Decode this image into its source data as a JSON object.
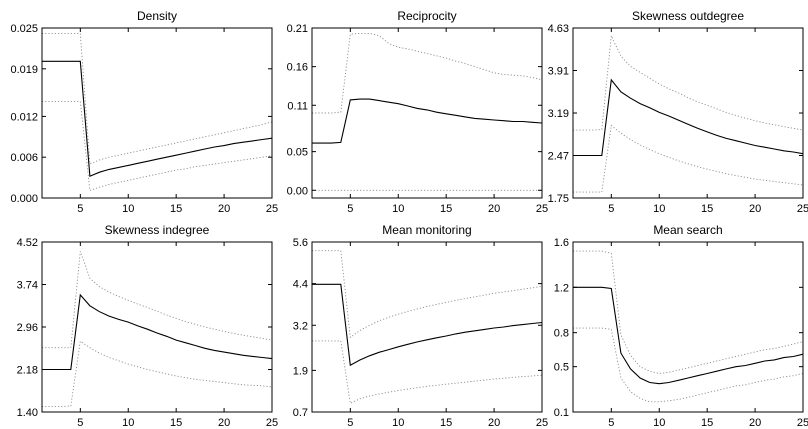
{
  "chart_data": [
    {
      "type": "line",
      "title": "Density",
      "xlim": [
        1,
        25
      ],
      "xticks": [
        5,
        10,
        15,
        20,
        25
      ],
      "ylim": [
        0,
        0.025
      ],
      "yticks": [
        0.0,
        0.006,
        0.012,
        0.019,
        0.025
      ],
      "ytick_labels": [
        "0.000",
        "0.006",
        "0.012",
        "0.019",
        "0.025"
      ],
      "x": [
        1,
        2,
        3,
        4,
        5,
        6,
        7,
        8,
        9,
        10,
        11,
        12,
        13,
        14,
        15,
        16,
        17,
        18,
        19,
        20,
        21,
        22,
        23,
        24,
        25
      ],
      "series": [
        {
          "style": "solid",
          "values": [
            0.0201,
            0.0201,
            0.0201,
            0.0201,
            0.0201,
            0.0032,
            0.0038,
            0.0042,
            0.0045,
            0.0048,
            0.0051,
            0.0054,
            0.0057,
            0.006,
            0.0063,
            0.0066,
            0.0069,
            0.0072,
            0.0075,
            0.0077,
            0.008,
            0.0082,
            0.0084,
            0.0086,
            0.0088
          ]
        },
        {
          "style": "dotted",
          "values": [
            0.0242,
            0.0242,
            0.0242,
            0.0242,
            0.0242,
            0.005,
            0.0056,
            0.006,
            0.0063,
            0.0066,
            0.0069,
            0.0072,
            0.0075,
            0.0078,
            0.0081,
            0.0084,
            0.0087,
            0.009,
            0.0093,
            0.0096,
            0.0099,
            0.0102,
            0.0105,
            0.0108,
            0.0112
          ]
        },
        {
          "style": "dotted",
          "values": [
            0.0142,
            0.0142,
            0.0142,
            0.0142,
            0.0142,
            0.0011,
            0.0016,
            0.002,
            0.0023,
            0.0026,
            0.0029,
            0.0032,
            0.0035,
            0.0038,
            0.0041,
            0.0043,
            0.0046,
            0.0048,
            0.005,
            0.0052,
            0.0054,
            0.0056,
            0.0058,
            0.006,
            0.0062
          ]
        }
      ]
    },
    {
      "type": "line",
      "title": "Reciprocity",
      "xlim": [
        1,
        25
      ],
      "xticks": [
        5,
        10,
        15,
        20,
        25
      ],
      "ylim": [
        -0.01,
        0.21
      ],
      "yticks": [
        0.0,
        0.05,
        0.11,
        0.16,
        0.21
      ],
      "ytick_labels": [
        "0.00",
        "0.05",
        "0.11",
        "0.16",
        "0.21"
      ],
      "x": [
        1,
        2,
        3,
        4,
        5,
        6,
        7,
        8,
        9,
        10,
        11,
        12,
        13,
        14,
        15,
        16,
        17,
        18,
        19,
        20,
        21,
        22,
        23,
        24,
        25
      ],
      "series": [
        {
          "style": "solid",
          "values": [
            0.061,
            0.061,
            0.061,
            0.062,
            0.117,
            0.118,
            0.118,
            0.116,
            0.114,
            0.112,
            0.109,
            0.106,
            0.104,
            0.101,
            0.099,
            0.097,
            0.095,
            0.093,
            0.092,
            0.091,
            0.09,
            0.089,
            0.089,
            0.088,
            0.087
          ]
        },
        {
          "style": "dotted",
          "values": [
            0.1,
            0.1,
            0.1,
            0.101,
            0.202,
            0.203,
            0.203,
            0.2,
            0.19,
            0.185,
            0.183,
            0.18,
            0.177,
            0.174,
            0.171,
            0.167,
            0.164,
            0.16,
            0.156,
            0.152,
            0.15,
            0.149,
            0.148,
            0.146,
            0.143
          ]
        },
        {
          "style": "dotted",
          "values": [
            0.0,
            0.0,
            0.0,
            0.0,
            0.0,
            0.0,
            0.0,
            0.0,
            0.0,
            0.0,
            0.0,
            0.0,
            0.0,
            0.0,
            0.0,
            0.0,
            0.0,
            0.0,
            0.0,
            0.0,
            0.0,
            0.0,
            0.0,
            0.0,
            0.0
          ]
        }
      ]
    },
    {
      "type": "line",
      "title": "Skewness outdegree",
      "xlim": [
        1,
        25
      ],
      "xticks": [
        5,
        10,
        15,
        20,
        25
      ],
      "ylim": [
        1.75,
        4.63
      ],
      "yticks": [
        1.75,
        2.47,
        3.19,
        3.91,
        4.63
      ],
      "ytick_labels": [
        "1.75",
        "2.47",
        "3.19",
        "3.91",
        "4.63"
      ],
      "x": [
        1,
        2,
        3,
        4,
        5,
        6,
        7,
        8,
        9,
        10,
        11,
        12,
        13,
        14,
        15,
        16,
        17,
        18,
        19,
        20,
        21,
        22,
        23,
        24,
        25
      ],
      "series": [
        {
          "style": "solid",
          "values": [
            2.47,
            2.47,
            2.47,
            2.47,
            3.75,
            3.55,
            3.44,
            3.35,
            3.28,
            3.2,
            3.14,
            3.07,
            3.0,
            2.93,
            2.87,
            2.81,
            2.76,
            2.72,
            2.68,
            2.64,
            2.61,
            2.58,
            2.55,
            2.53,
            2.5
          ]
        },
        {
          "style": "dotted",
          "values": [
            2.9,
            2.9,
            2.9,
            2.91,
            4.5,
            4.15,
            3.98,
            3.88,
            3.78,
            3.68,
            3.6,
            3.53,
            3.45,
            3.38,
            3.32,
            3.26,
            3.2,
            3.15,
            3.1,
            3.06,
            3.02,
            2.99,
            2.96,
            2.93,
            2.9
          ]
        },
        {
          "style": "dotted",
          "values": [
            1.85,
            1.85,
            1.85,
            1.85,
            2.98,
            2.85,
            2.74,
            2.65,
            2.57,
            2.5,
            2.44,
            2.38,
            2.33,
            2.28,
            2.24,
            2.2,
            2.16,
            2.13,
            2.1,
            2.07,
            2.05,
            2.03,
            2.01,
            1.99,
            1.97
          ]
        }
      ]
    },
    {
      "type": "line",
      "title": "Skewness indegree",
      "xlim": [
        1,
        25
      ],
      "xticks": [
        5,
        10,
        15,
        20,
        25
      ],
      "ylim": [
        1.4,
        4.52
      ],
      "yticks": [
        1.4,
        2.18,
        2.96,
        3.74,
        4.52
      ],
      "ytick_labels": [
        "1.40",
        "2.18",
        "2.96",
        "3.74",
        "4.52"
      ],
      "x": [
        1,
        2,
        3,
        4,
        5,
        6,
        7,
        8,
        9,
        10,
        11,
        12,
        13,
        14,
        15,
        16,
        17,
        18,
        19,
        20,
        21,
        22,
        23,
        24,
        25
      ],
      "series": [
        {
          "style": "solid",
          "values": [
            2.18,
            2.18,
            2.18,
            2.18,
            3.55,
            3.35,
            3.24,
            3.16,
            3.1,
            3.05,
            2.98,
            2.92,
            2.85,
            2.79,
            2.72,
            2.67,
            2.62,
            2.57,
            2.53,
            2.5,
            2.47,
            2.44,
            2.42,
            2.4,
            2.38
          ]
        },
        {
          "style": "dotted",
          "values": [
            2.58,
            2.58,
            2.58,
            2.58,
            4.35,
            3.85,
            3.7,
            3.6,
            3.52,
            3.45,
            3.38,
            3.32,
            3.25,
            3.18,
            3.12,
            3.06,
            3.01,
            2.96,
            2.92,
            2.88,
            2.84,
            2.81,
            2.78,
            2.75,
            2.72
          ]
        },
        {
          "style": "dotted",
          "values": [
            1.5,
            1.5,
            1.5,
            1.51,
            2.7,
            2.58,
            2.48,
            2.4,
            2.34,
            2.28,
            2.23,
            2.18,
            2.14,
            2.1,
            2.06,
            2.03,
            2.0,
            1.98,
            1.96,
            1.94,
            1.92,
            1.9,
            1.89,
            1.88,
            1.86
          ]
        }
      ]
    },
    {
      "type": "line",
      "title": "Mean monitoring",
      "xlim": [
        1,
        25
      ],
      "xticks": [
        5,
        10,
        15,
        20,
        25
      ],
      "ylim": [
        0.7,
        5.6
      ],
      "yticks": [
        0.7,
        1.9,
        3.2,
        4.4,
        5.6
      ],
      "ytick_labels": [
        "0.7",
        "1.9",
        "3.2",
        "4.4",
        "5.6"
      ],
      "x": [
        1,
        2,
        3,
        4,
        5,
        6,
        7,
        8,
        9,
        10,
        11,
        12,
        13,
        14,
        15,
        16,
        17,
        18,
        19,
        20,
        21,
        22,
        23,
        24,
        25
      ],
      "series": [
        {
          "style": "solid",
          "values": [
            4.38,
            4.38,
            4.38,
            4.38,
            2.05,
            2.2,
            2.32,
            2.42,
            2.5,
            2.58,
            2.65,
            2.72,
            2.78,
            2.84,
            2.89,
            2.95,
            3.0,
            3.04,
            3.08,
            3.12,
            3.15,
            3.19,
            3.22,
            3.25,
            3.28
          ]
        },
        {
          "style": "dotted",
          "values": [
            5.35,
            5.35,
            5.35,
            5.35,
            2.85,
            3.05,
            3.2,
            3.33,
            3.43,
            3.52,
            3.6,
            3.67,
            3.74,
            3.8,
            3.86,
            3.92,
            3.97,
            4.02,
            4.07,
            4.12,
            4.16,
            4.2,
            4.24,
            4.28,
            4.32
          ]
        },
        {
          "style": "dotted",
          "values": [
            2.75,
            2.75,
            2.75,
            2.75,
            0.95,
            1.08,
            1.16,
            1.22,
            1.27,
            1.32,
            1.36,
            1.4,
            1.44,
            1.47,
            1.5,
            1.53,
            1.56,
            1.59,
            1.62,
            1.65,
            1.67,
            1.7,
            1.72,
            1.74,
            1.76
          ]
        }
      ]
    },
    {
      "type": "line",
      "title": "Mean search",
      "xlim": [
        1,
        25
      ],
      "xticks": [
        5,
        10,
        15,
        20,
        25
      ],
      "ylim": [
        0.1,
        1.6
      ],
      "yticks": [
        0.1,
        0.5,
        0.8,
        1.2,
        1.6
      ],
      "ytick_labels": [
        "0.1",
        "0.5",
        "0.8",
        "1.2",
        "1.6"
      ],
      "x": [
        1,
        2,
        3,
        4,
        5,
        6,
        7,
        8,
        9,
        10,
        11,
        12,
        13,
        14,
        15,
        16,
        17,
        18,
        19,
        20,
        21,
        22,
        23,
        24,
        25
      ],
      "series": [
        {
          "style": "solid",
          "values": [
            1.2,
            1.2,
            1.2,
            1.2,
            1.19,
            0.62,
            0.48,
            0.4,
            0.36,
            0.35,
            0.36,
            0.38,
            0.4,
            0.42,
            0.44,
            0.46,
            0.48,
            0.5,
            0.51,
            0.53,
            0.55,
            0.56,
            0.58,
            0.59,
            0.61
          ]
        },
        {
          "style": "dotted",
          "values": [
            1.52,
            1.52,
            1.52,
            1.52,
            1.5,
            0.78,
            0.6,
            0.5,
            0.46,
            0.44,
            0.45,
            0.47,
            0.49,
            0.51,
            0.53,
            0.55,
            0.57,
            0.59,
            0.61,
            0.63,
            0.65,
            0.66,
            0.68,
            0.7,
            0.72
          ]
        },
        {
          "style": "dotted",
          "values": [
            0.84,
            0.84,
            0.84,
            0.84,
            0.83,
            0.4,
            0.28,
            0.22,
            0.19,
            0.19,
            0.2,
            0.21,
            0.23,
            0.25,
            0.27,
            0.29,
            0.31,
            0.33,
            0.34,
            0.36,
            0.38,
            0.39,
            0.41,
            0.42,
            0.44
          ]
        }
      ]
    }
  ]
}
